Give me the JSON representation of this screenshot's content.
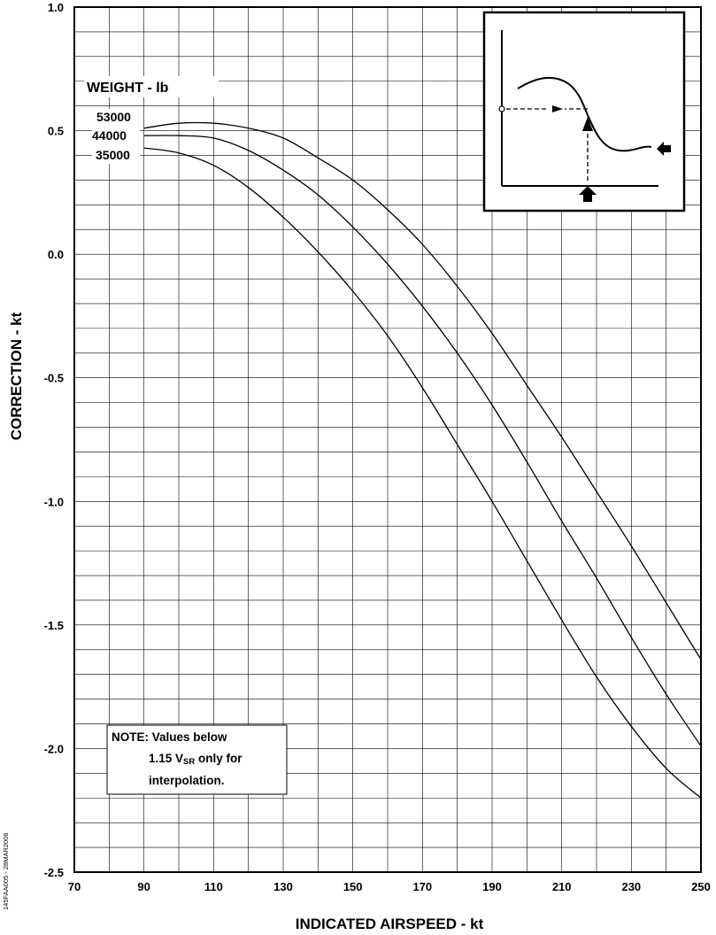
{
  "chart_data": {
    "type": "line",
    "xlabel": "INDICATED AIRSPEED - kt",
    "ylabel": "CORRECTION - kt",
    "xlim": [
      70,
      250
    ],
    "ylim": [
      -2.5,
      1.0
    ],
    "x_ticks": [
      "70",
      "90",
      "110",
      "130",
      "150",
      "170",
      "190",
      "210",
      "230",
      "250"
    ],
    "y_ticks": [
      "1.0",
      "0.5",
      "0.0",
      "-0.5",
      "-1.0",
      "-1.5",
      "-2.0",
      "-2.5"
    ],
    "grid": true,
    "legend_title": "WEIGHT - lb",
    "series": [
      {
        "name": "53000",
        "x": [
          90,
          100,
          110,
          120,
          130,
          140,
          150,
          160,
          170,
          180,
          190,
          200,
          210,
          220,
          230,
          240,
          250
        ],
        "values": [
          0.51,
          0.53,
          0.53,
          0.51,
          0.47,
          0.39,
          0.3,
          0.18,
          0.04,
          -0.13,
          -0.32,
          -0.53,
          -0.74,
          -0.96,
          -1.18,
          -1.41,
          -1.64
        ]
      },
      {
        "name": "44000",
        "x": [
          90,
          100,
          110,
          120,
          130,
          140,
          150,
          160,
          170,
          180,
          190,
          200,
          210,
          220,
          230,
          240,
          250
        ],
        "values": [
          0.48,
          0.48,
          0.47,
          0.42,
          0.34,
          0.24,
          0.11,
          -0.04,
          -0.21,
          -0.4,
          -0.61,
          -0.84,
          -1.08,
          -1.31,
          -1.55,
          -1.78,
          -1.99
        ]
      },
      {
        "name": "35000",
        "x": [
          90,
          100,
          110,
          120,
          130,
          140,
          150,
          160,
          170,
          180,
          190,
          200,
          210,
          220,
          230,
          240,
          250
        ],
        "values": [
          0.43,
          0.41,
          0.36,
          0.27,
          0.15,
          0.01,
          -0.15,
          -0.33,
          -0.54,
          -0.77,
          -1.0,
          -1.24,
          -1.48,
          -1.71,
          -1.91,
          -2.08,
          -2.2
        ]
      }
    ],
    "note": {
      "line1": "NOTE: Values below",
      "line2_prefix": "1.15 V",
      "line2_subscript": "SR",
      "line2_suffix": " only for",
      "line3": "interpolation."
    },
    "side_id": "145FAA005 - 28MAR2006"
  }
}
